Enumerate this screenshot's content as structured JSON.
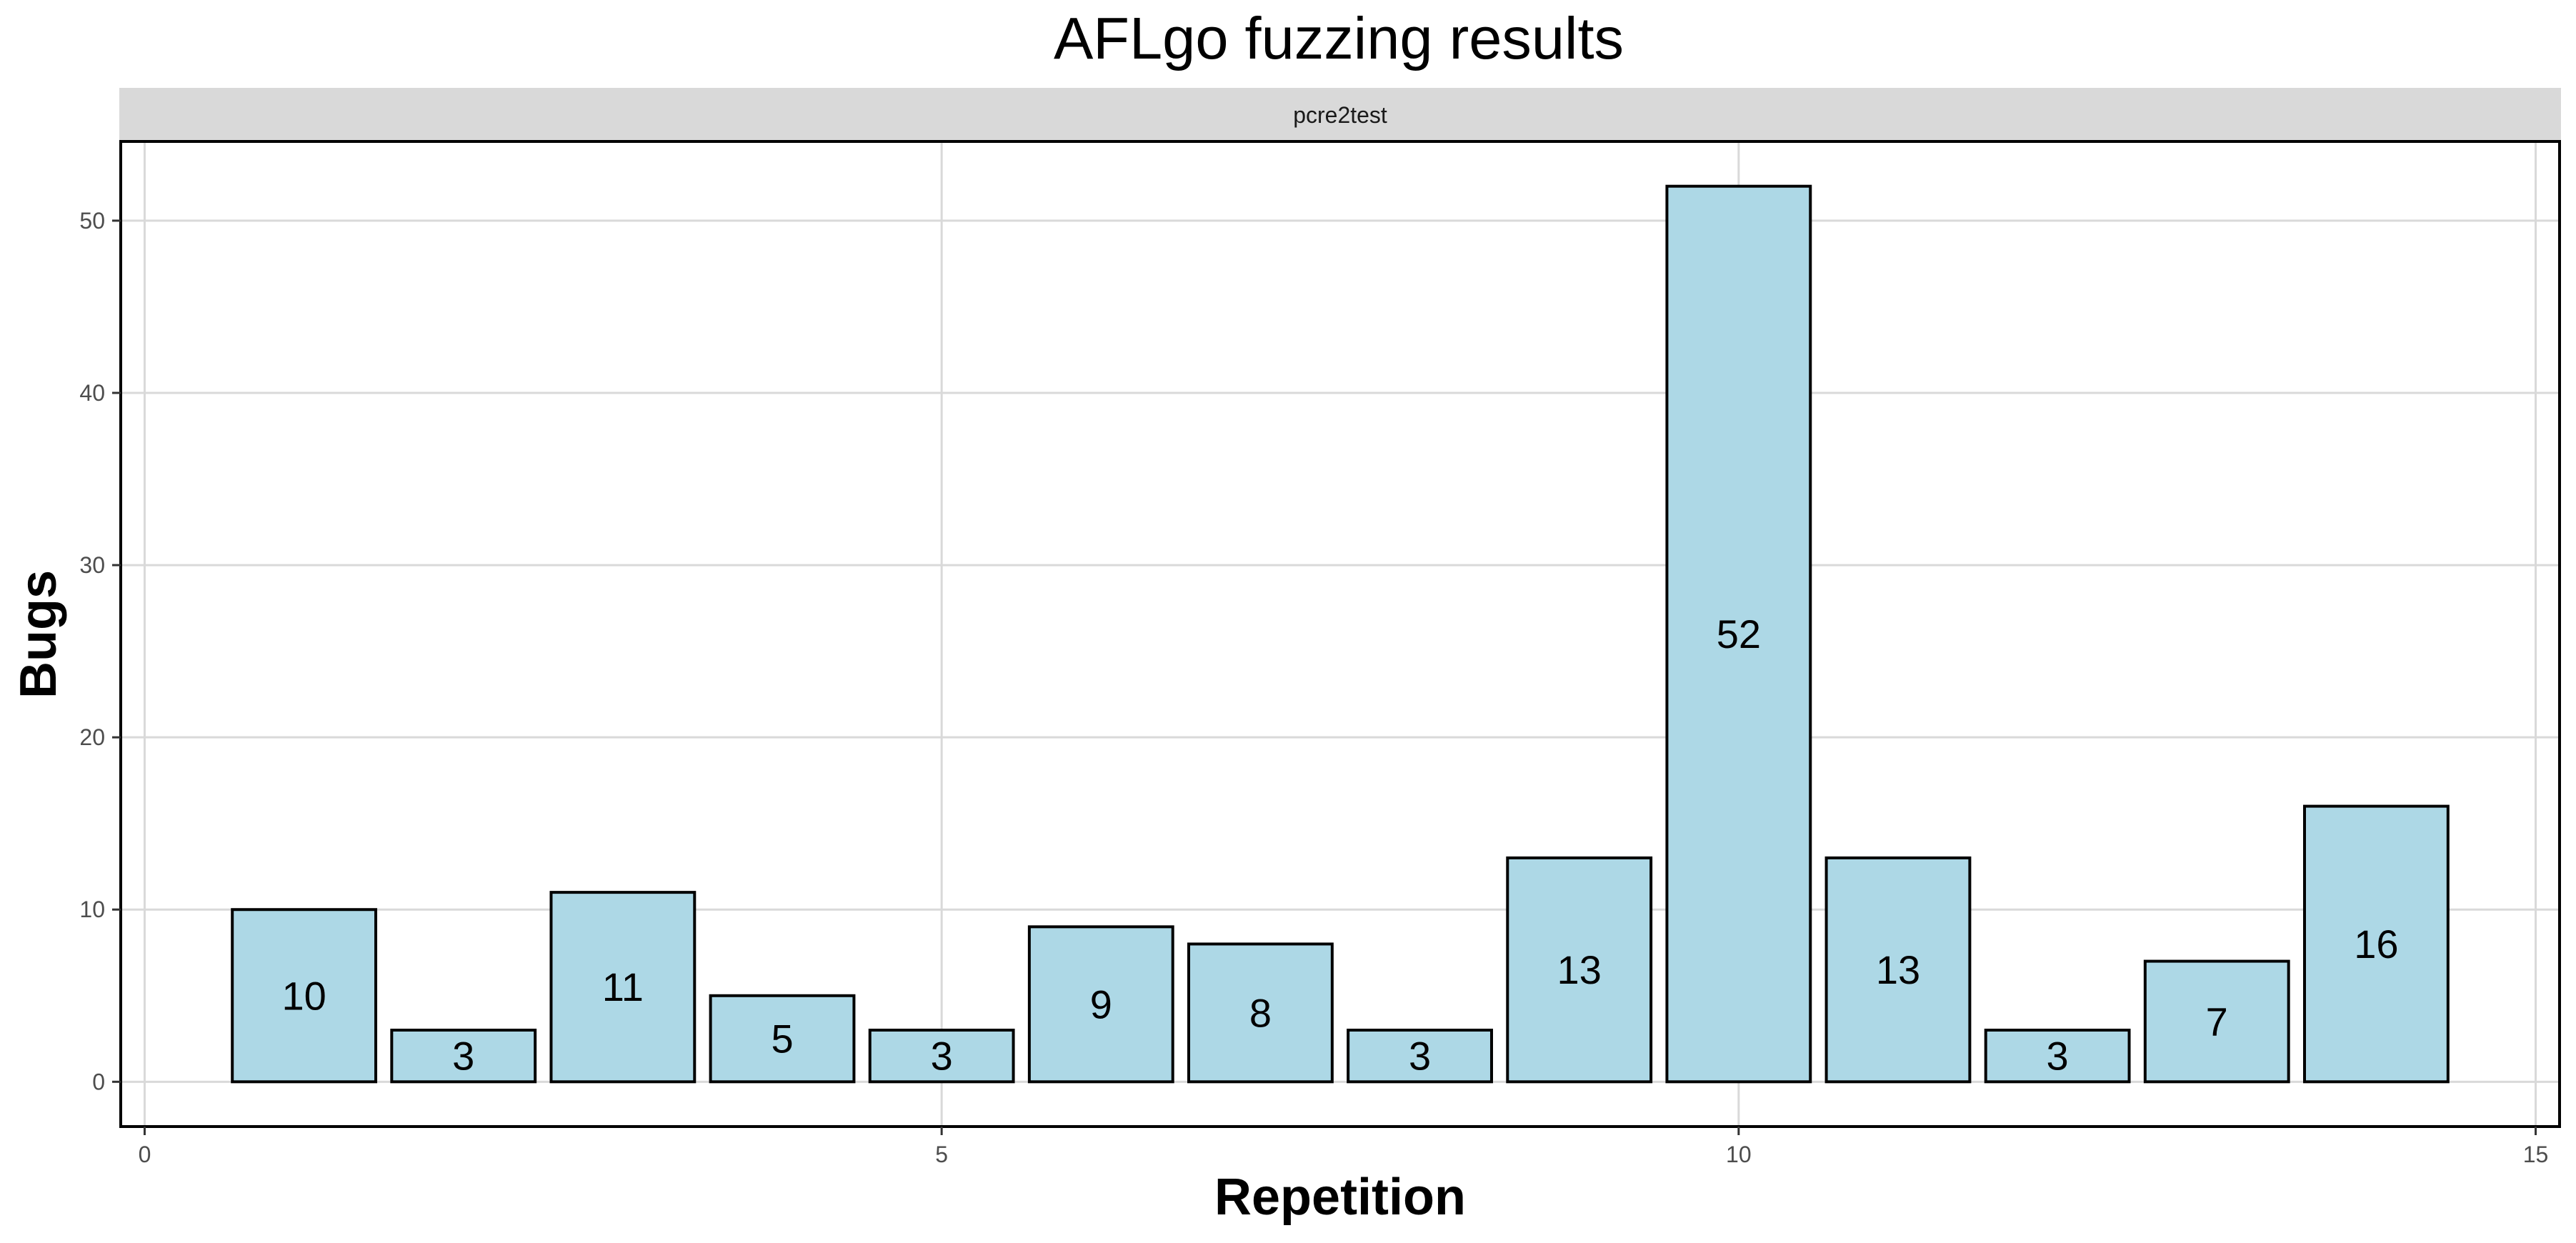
{
  "chart_data": {
    "type": "bar",
    "title": "AFLgo fuzzing results",
    "facet_label": "pcre2test",
    "xlabel": "Repetition",
    "ylabel": "Bugs",
    "x": [
      1,
      2,
      3,
      4,
      5,
      6,
      7,
      8,
      9,
      10,
      11,
      12,
      13,
      14
    ],
    "values": [
      10,
      3,
      11,
      5,
      3,
      9,
      8,
      3,
      13,
      52,
      13,
      3,
      7,
      16
    ],
    "xlim": [
      -0.15,
      15.15
    ],
    "ylim": [
      -2.6,
      54.6
    ],
    "xticks": [
      0,
      5,
      10,
      15
    ],
    "yticks": [
      0,
      10,
      20,
      30,
      40,
      50
    ],
    "bar_width": 0.9,
    "grid": true,
    "legend": "none",
    "colors": {
      "bar_fill": "#add8e6",
      "bar_stroke": "#000000",
      "grid": "#d9d9d9",
      "strip_background": "#d9d9d9"
    }
  }
}
